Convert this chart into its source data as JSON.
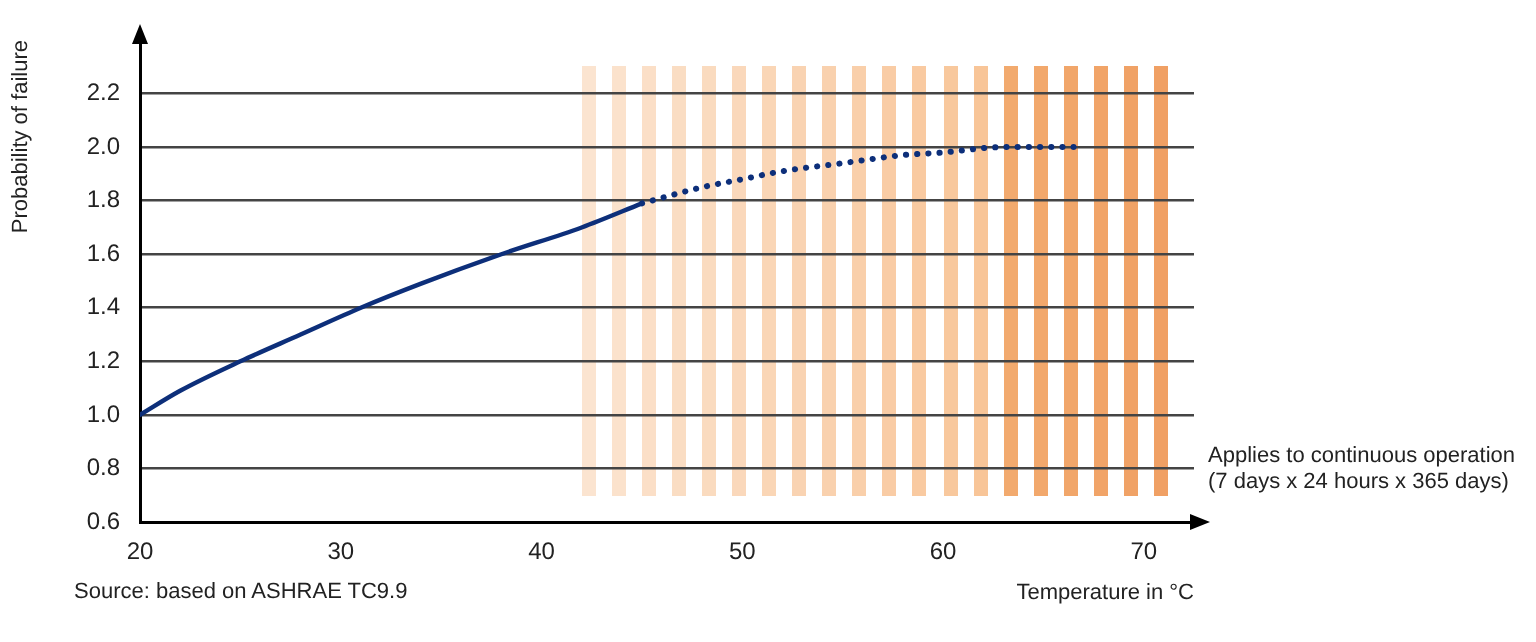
{
  "chart_data": {
    "type": "line",
    "ylabel": "Probability of failure",
    "xlabel": "Temperature in °C",
    "series": [
      {
        "color": "#0d2f7a",
        "line_style": "solid",
        "x": [
          20,
          22,
          25,
          28,
          31,
          34,
          38,
          42,
          45
        ],
        "values": [
          1.0,
          1.09,
          1.2,
          1.3,
          1.4,
          1.49,
          1.6,
          1.7,
          1.79
        ]
      },
      {
        "color": "#0d2f7a",
        "line_style": "dotted",
        "x": [
          45,
          48,
          50,
          52,
          55,
          58,
          60,
          63,
          66.5
        ],
        "values": [
          1.79,
          1.85,
          1.88,
          1.91,
          1.94,
          1.97,
          1.98,
          2.0,
          2.0
        ]
      }
    ],
    "xlim": [
      20,
      72.5
    ],
    "xticks": [
      20,
      30,
      40,
      50,
      60,
      70
    ],
    "ylim": [
      0.6,
      2.4
    ],
    "yticks": [
      0.6,
      0.8,
      {
        "value": 1,
        "label": "1.0"
      },
      1.2,
      1.4,
      1.6,
      1.8,
      {
        "value": 2,
        "label": "2.0"
      },
      2.2
    ],
    "grid": "y",
    "legend": false,
    "marker": "none",
    "annotations": [
      "Source: based on ASHRAE TC9.9",
      "Applies to continuous operation (7 days x 24 hours x 365 days)"
    ]
  }
}
